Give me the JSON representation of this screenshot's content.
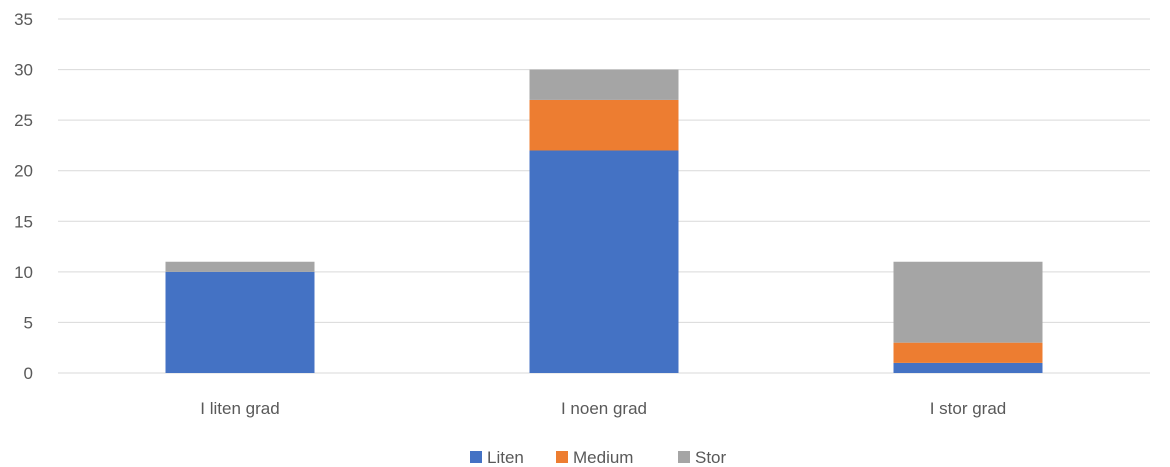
{
  "chart_data": {
    "type": "bar",
    "stacked": true,
    "categories": [
      "I liten grad",
      "I noen grad",
      "I stor grad"
    ],
    "series": [
      {
        "name": "Liten",
        "color": "#4472c4",
        "values": [
          10,
          22,
          1
        ]
      },
      {
        "name": "Medium",
        "color": "#ed7d31",
        "values": [
          0,
          5,
          2
        ]
      },
      {
        "name": "Stor",
        "color": "#a5a5a5",
        "values": [
          1,
          3,
          8
        ]
      }
    ],
    "yticks": [
      "0",
      "5",
      "10",
      "15",
      "20",
      "25",
      "30",
      "35"
    ],
    "ylim": [
      0,
      35
    ],
    "grid": true,
    "legend": "bottom",
    "title": "",
    "xlabel": "",
    "ylabel": ""
  }
}
